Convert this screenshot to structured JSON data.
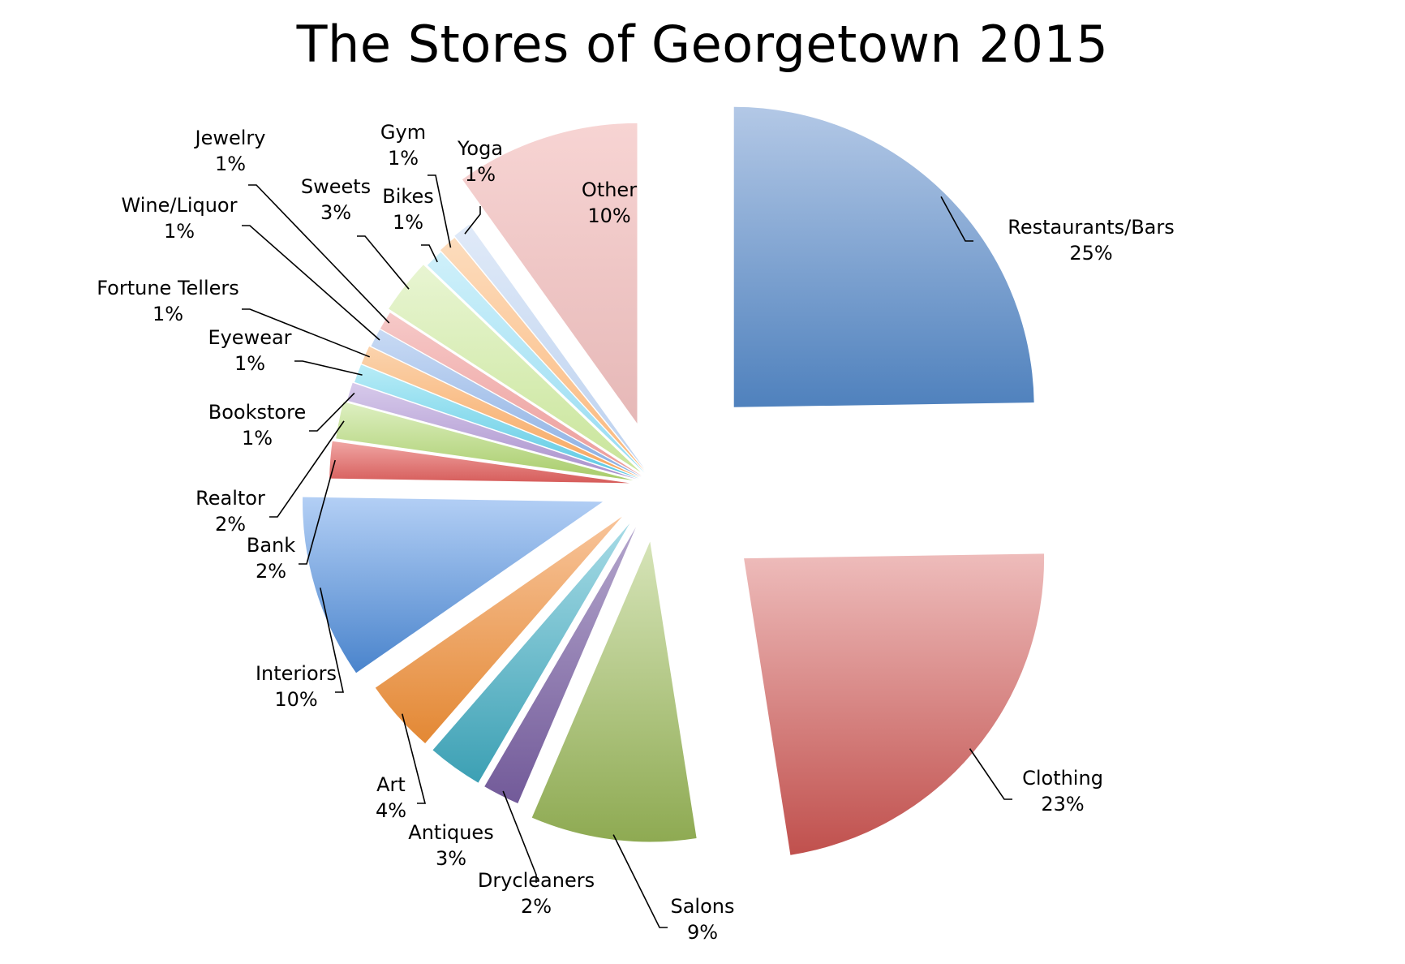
{
  "chart_data": {
    "type": "pie",
    "title": "The Stores of Georgetown 2015",
    "slices": [
      {
        "name": "Restaurants/Bars",
        "label": "25%",
        "value": 25,
        "color": "#4f81bd",
        "light": "#b3c8e6"
      },
      {
        "name": "Clothing",
        "label": "23%",
        "value": 23,
        "color": "#c0504d",
        "light": "#eebcbb"
      },
      {
        "name": "Salons",
        "label": "9%",
        "value": 9,
        "color": "#8eaa52",
        "light": "#d6e4b8"
      },
      {
        "name": "Drycleaners",
        "label": "2%",
        "value": 2,
        "color": "#725a99",
        "light": "#b3a5cc"
      },
      {
        "name": "Antiques",
        "label": "3%",
        "value": 3,
        "color": "#3ca0b4",
        "light": "#a6dbe6"
      },
      {
        "name": "Art",
        "label": "4%",
        "value": 4,
        "color": "#e38834",
        "light": "#f8c49a"
      },
      {
        "name": "Interiors",
        "label": "10%",
        "value": 10,
        "color": "#4a84cc",
        "light": "#b3cff5"
      },
      {
        "name": "Bank",
        "label": "2%",
        "value": 2,
        "color": "#d65c5a",
        "light": "#f0a6a4"
      },
      {
        "name": "Realtor",
        "label": "2%",
        "value": 2,
        "color": "#a8cc6a",
        "light": "#def0c2"
      },
      {
        "name": "Bookstore",
        "label": "1%",
        "value": 1,
        "color": "#a990cc",
        "light": "#d7caeb"
      },
      {
        "name": "Eyewear",
        "label": "1%",
        "value": 1,
        "color": "#5bc9e3",
        "light": "#b8ecf7"
      },
      {
        "name": "Fortune Tellers",
        "label": "1%",
        "value": 1,
        "color": "#f7a55c",
        "light": "#fbd3ad"
      },
      {
        "name": "Wine/Liquor",
        "label": "1%",
        "value": 1,
        "color": "#8aaee2",
        "light": "#c8daf4"
      },
      {
        "name": "Jewelry",
        "label": "1%",
        "value": 1,
        "color": "#ec9b99",
        "light": "#f6c9c8"
      },
      {
        "name": "Sweets",
        "label": "3%",
        "value": 3,
        "color": "#c9e59a",
        "light": "#e8f5d2"
      },
      {
        "name": "Bikes",
        "label": "1%",
        "value": 1,
        "color": "#96dcf2",
        "light": "#cff0fa"
      },
      {
        "name": "Gym",
        "label": "1%",
        "value": 1,
        "color": "#fbb87c",
        "light": "#fcdcbd"
      },
      {
        "name": "Yoga",
        "label": "1%",
        "value": 1,
        "color": "#bcd1ef",
        "light": "#e0eaf8"
      },
      {
        "name": "Other",
        "label": "10%",
        "value": 10,
        "color": "#e6b8b7",
        "light": "#f7d4d3"
      }
    ],
    "legend": "none",
    "start_angle": "12 o'clock, clockwise",
    "exploded": true
  }
}
